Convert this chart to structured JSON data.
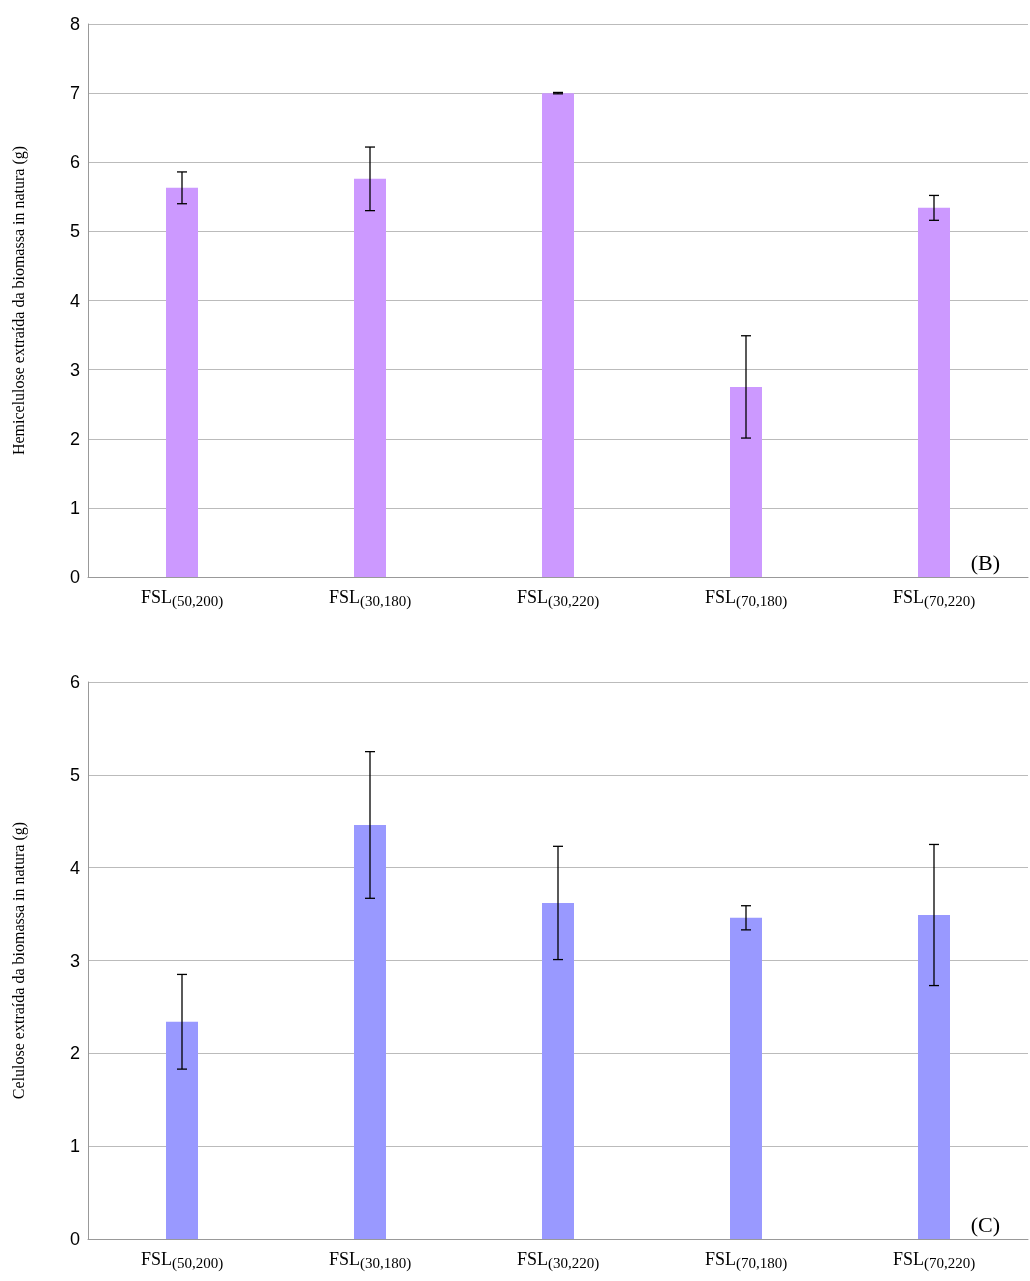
{
  "chart_data": [
    {
      "type": "bar",
      "ylabel": "Hemicelulose extraída da biomassa in natura (g)",
      "categories": [
        "FSL$_{(50,200)}$",
        "FSL$_{(30,180)}$",
        "FSL$_{(30,220)}$",
        "FSL$_{(70,180)}$",
        "FSL$_{(70,220)}$"
      ],
      "values": [
        5.63,
        5.76,
        7.0,
        2.75,
        5.34
      ],
      "errors": [
        0.23,
        0.46,
        0.01,
        0.74,
        0.18
      ],
      "color": "#cc99ff",
      "ylim": [
        0,
        8
      ],
      "yticks": [
        0,
        1,
        2,
        3,
        4,
        5,
        6,
        7,
        8
      ],
      "grid": "y",
      "annotations": [
        "(B)"
      ]
    },
    {
      "type": "bar",
      "ylabel": "Celulose extraída da biomassa in natura (g)",
      "categories": [
        "FSL$_{(50,200)}$",
        "FSL$_{(30,180)}$",
        "FSL$_{(30,220)}$",
        "FSL$_{(70,180)}$",
        "FSL$_{(70,220)}$"
      ],
      "values": [
        2.34,
        4.46,
        3.62,
        3.46,
        3.49
      ],
      "errors": [
        0.51,
        0.79,
        0.61,
        0.13,
        0.76
      ],
      "color": "#9999ff",
      "ylim": [
        0,
        6
      ],
      "yticks": [
        0,
        1,
        2,
        3,
        4,
        5,
        6
      ],
      "grid": "y",
      "annotations": [
        "(C)"
      ]
    }
  ]
}
